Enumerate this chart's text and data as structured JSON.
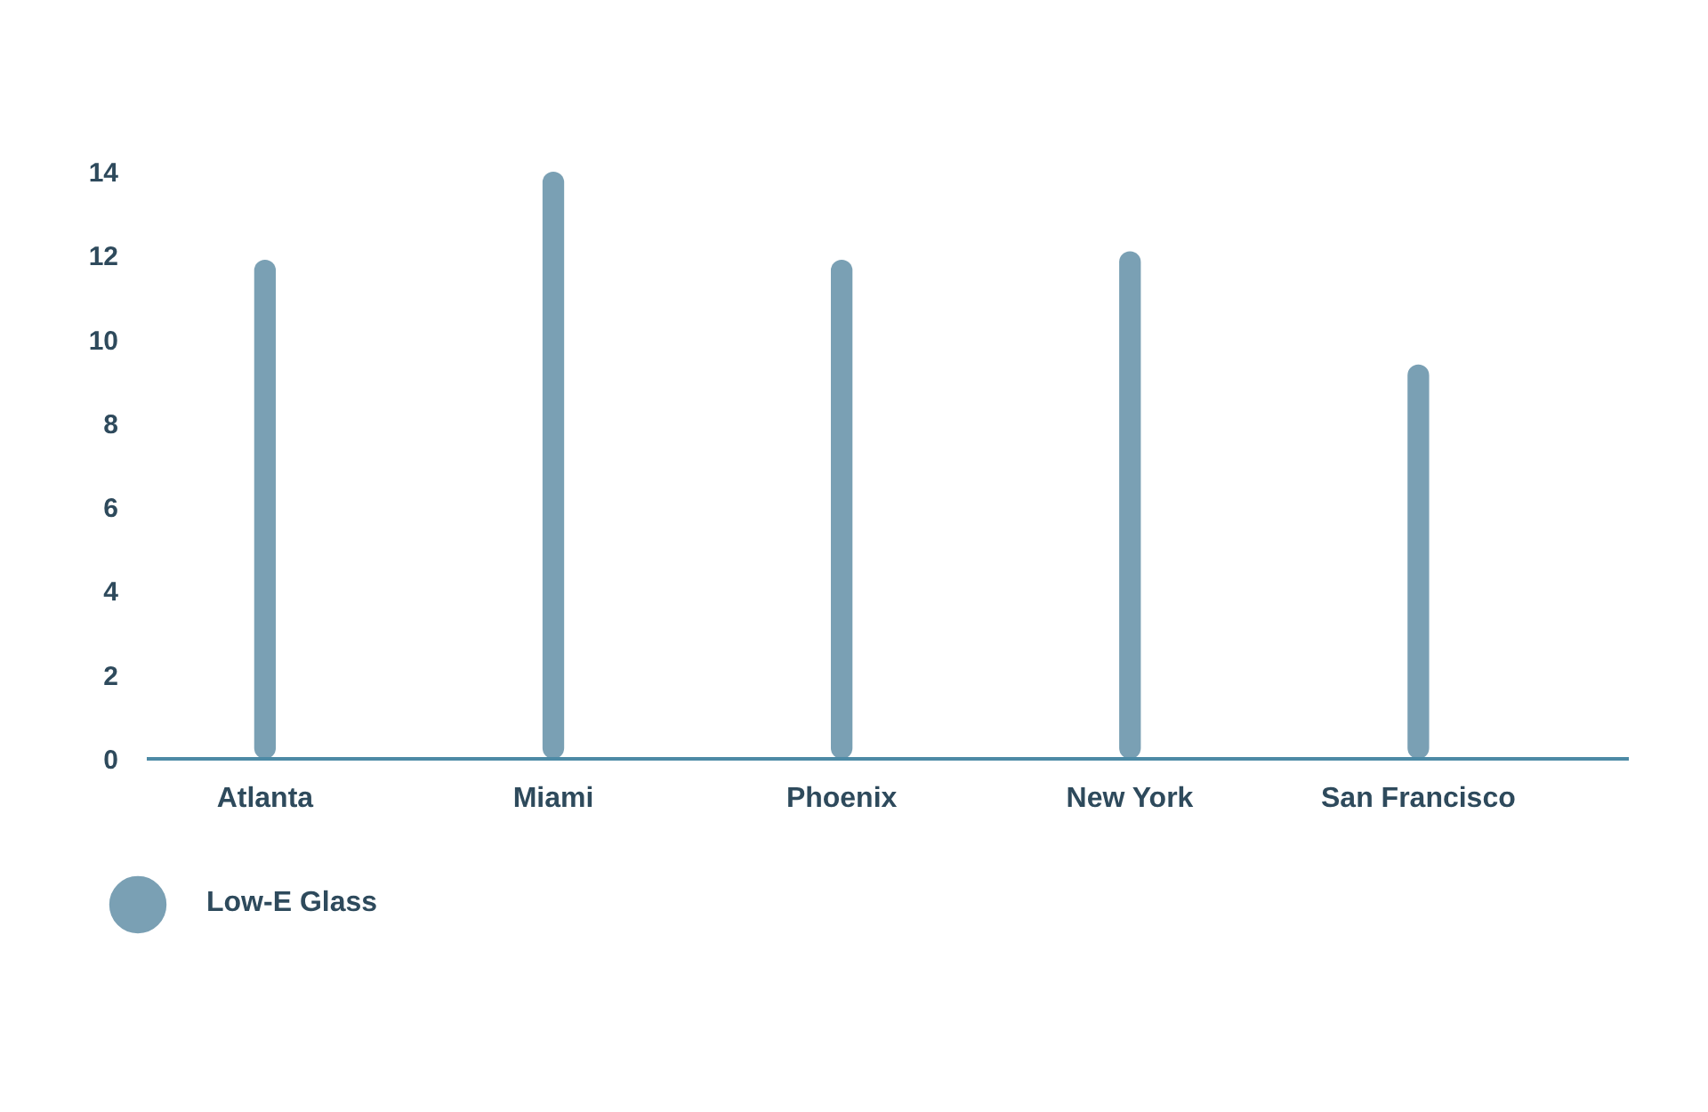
{
  "chart_data": {
    "type": "bar",
    "categories": [
      "Atlanta",
      "Miami",
      "Phoenix",
      "New York",
      "San Francisco"
    ],
    "series": [
      {
        "name": "Low-E Glass",
        "color": "#7aa0b4",
        "values": [
          11.9,
          14.0,
          11.9,
          12.1,
          9.4
        ]
      }
    ],
    "ylim": [
      0,
      14
    ],
    "yticks": [
      0,
      2,
      4,
      6,
      8,
      10,
      12,
      14
    ],
    "grid": false,
    "legend": "bottom"
  }
}
